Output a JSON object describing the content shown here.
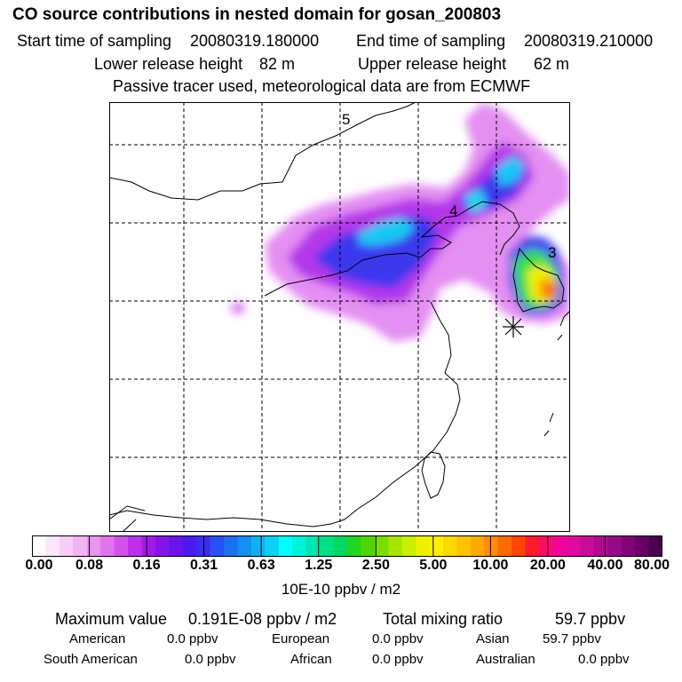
{
  "header": {
    "title": "CO  source contributions in nested domain for gosan_200803",
    "start_label": "Start time of sampling",
    "start_value": "20080319.180000",
    "end_label": "End time of sampling",
    "end_value": "20080319.210000",
    "lower_label": "Lower release height",
    "lower_value": "82 m",
    "upper_label": "Upper release height",
    "upper_value": "62 m",
    "tracer_note": "Passive tracer used, meteorological data are from ECMWF"
  },
  "map": {
    "trajectory_labels": [
      "5",
      "4",
      "3"
    ],
    "receptor_marker": "asterisk",
    "grid": "dashed"
  },
  "colorbar": {
    "tick_labels": [
      "0.00",
      "0.08",
      "0.16",
      "0.31",
      "0.63",
      "1.25",
      "2.50",
      "5.00",
      "10.00",
      "20.00",
      "40.00",
      "80.00"
    ],
    "unit": "10E-10 ppbv / m2",
    "colors": [
      "#ffffff",
      "#fbe6fb",
      "#f6cdf7",
      "#f0b4f3",
      "#e994f0",
      "#df74ec",
      "#d252ea",
      "#bf2fe9",
      "#a31ae8",
      "#8514e8",
      "#6a14ea",
      "#4d1aed",
      "#3a2ff0",
      "#2850f2",
      "#1a6ff3",
      "#1290f4",
      "#0fb0f5",
      "#0cd0f6",
      "#00ffff",
      "#00f2d8",
      "#00e8b0",
      "#00e084",
      "#00d860",
      "#20d620",
      "#4fd600",
      "#7ade00",
      "#a6e600",
      "#ccee00",
      "#eef200",
      "#ffee00",
      "#ffd800",
      "#ffc200",
      "#ffa800",
      "#ff8c00",
      "#ff6a00",
      "#ff4400",
      "#ff1a2a",
      "#ff0a6a",
      "#f0069a",
      "#e00aa0",
      "#c80c98",
      "#b00a90",
      "#980888",
      "#800478",
      "#680066",
      "#4a0050"
    ]
  },
  "summary": {
    "max_label": "Maximum value",
    "max_value": "0.191E-08 ppbv / m2",
    "total_label": "Total mixing ratio",
    "total_value": "59.7 ppbv",
    "regions": [
      {
        "name": "American",
        "value": "0.0 ppbv"
      },
      {
        "name": "European",
        "value": "0.0 ppbv"
      },
      {
        "name": "Asian",
        "value": "59.7 ppbv"
      },
      {
        "name": "South American",
        "value": "0.0 ppbv"
      },
      {
        "name": "African",
        "value": "0.0 ppbv"
      },
      {
        "name": "Australian",
        "value": "0.0 ppbv"
      }
    ]
  }
}
